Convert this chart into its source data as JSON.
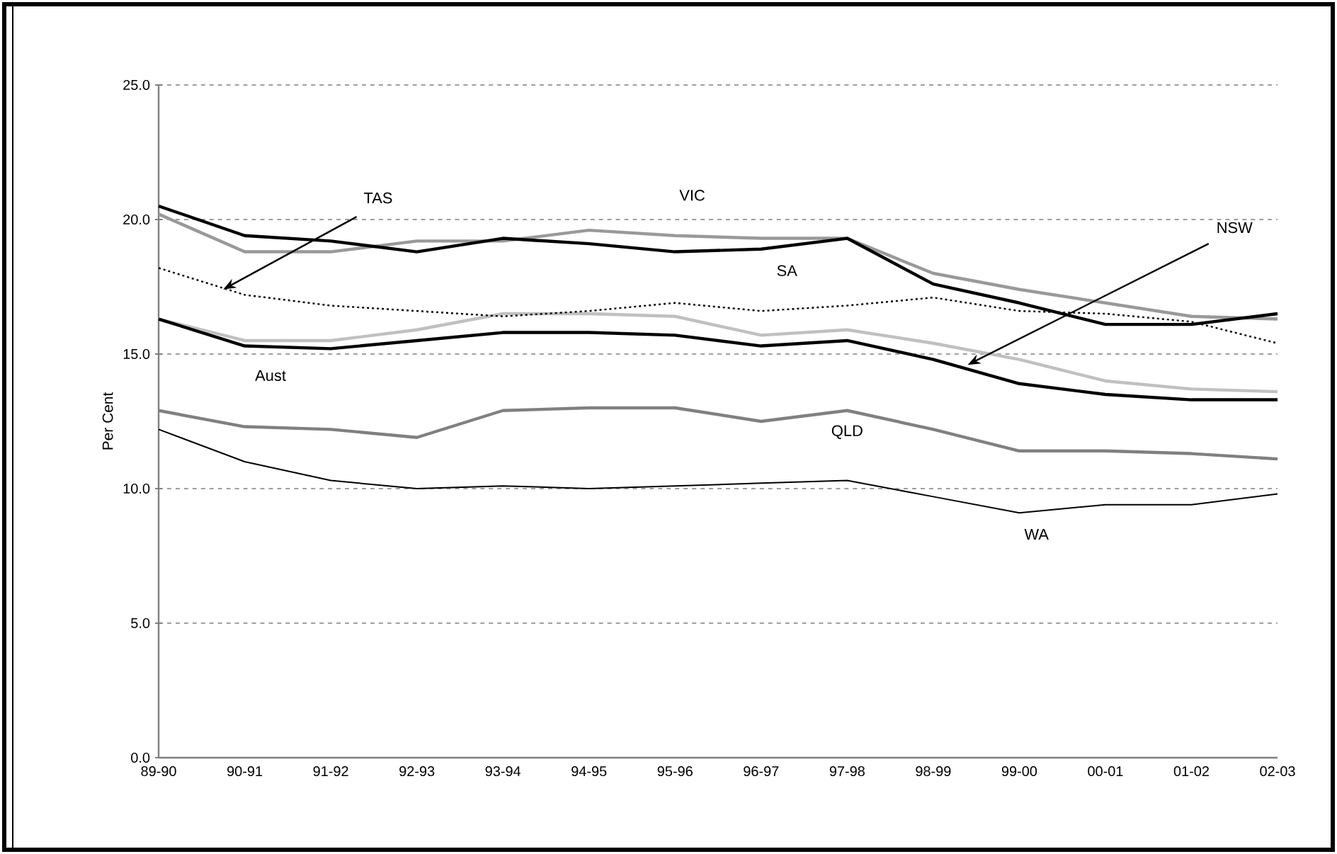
{
  "chart_data": {
    "type": "line",
    "ylabel": "Per Cent",
    "categories": [
      "89-90",
      "90-91",
      "91-92",
      "92-93",
      "93-94",
      "94-95",
      "95-96",
      "96-97",
      "97-98",
      "98-99",
      "99-00",
      "00-01",
      "01-02",
      "02-03"
    ],
    "series": [
      {
        "name": "NSW",
        "color": "#c0c0c0",
        "values": [
          16.3,
          15.5,
          15.5,
          15.9,
          16.5,
          16.5,
          16.4,
          15.7,
          15.9,
          15.4,
          14.8,
          14.0,
          13.7,
          13.6
        ]
      },
      {
        "name": "VIC",
        "color": "#999999",
        "values": [
          20.2,
          18.8,
          18.8,
          19.2,
          19.2,
          19.6,
          19.4,
          19.3,
          19.3,
          18.0,
          17.4,
          16.9,
          16.4,
          16.3
        ]
      },
      {
        "name": "QLD",
        "color": "#808080",
        "values": [
          12.9,
          12.3,
          12.2,
          11.9,
          12.9,
          13.0,
          13.0,
          12.5,
          12.9,
          12.2,
          11.4,
          11.4,
          11.3,
          11.1
        ]
      },
      {
        "name": "SA",
        "color": "#000000",
        "values": [
          20.5,
          19.4,
          19.2,
          18.8,
          19.3,
          19.1,
          18.8,
          18.9,
          19.3,
          17.6,
          16.9,
          16.1,
          16.1,
          16.5
        ]
      },
      {
        "name": "WA",
        "color": "#000000",
        "values": [
          12.2,
          11.0,
          10.3,
          10.0,
          10.1,
          10.0,
          10.1,
          10.2,
          10.3,
          9.7,
          9.1,
          9.4,
          9.4,
          9.8
        ]
      },
      {
        "name": "TAS",
        "color": "#000000",
        "line_style": "dotted",
        "values": [
          18.2,
          17.2,
          16.8,
          16.6,
          16.4,
          16.6,
          16.9,
          16.6,
          16.8,
          17.1,
          16.6,
          16.5,
          16.2,
          15.4
        ]
      },
      {
        "name": "Aust",
        "color": "#000000",
        "values": [
          16.3,
          15.3,
          15.2,
          15.5,
          15.8,
          15.8,
          15.7,
          15.3,
          15.5,
          14.8,
          13.9,
          13.5,
          13.3,
          13.3
        ]
      }
    ],
    "ylim": [
      0,
      25
    ],
    "yticks": [
      {
        "value": 0,
        "label": "0.0"
      },
      {
        "value": 5,
        "label": "5.0"
      },
      {
        "value": 10,
        "label": "10.0"
      },
      {
        "value": 15,
        "label": "15.0"
      },
      {
        "value": 20,
        "label": "20.0"
      },
      {
        "value": 25,
        "label": "25.0"
      }
    ],
    "grid": "y",
    "legend": false,
    "marker": "none",
    "line_style": "solid"
  }
}
